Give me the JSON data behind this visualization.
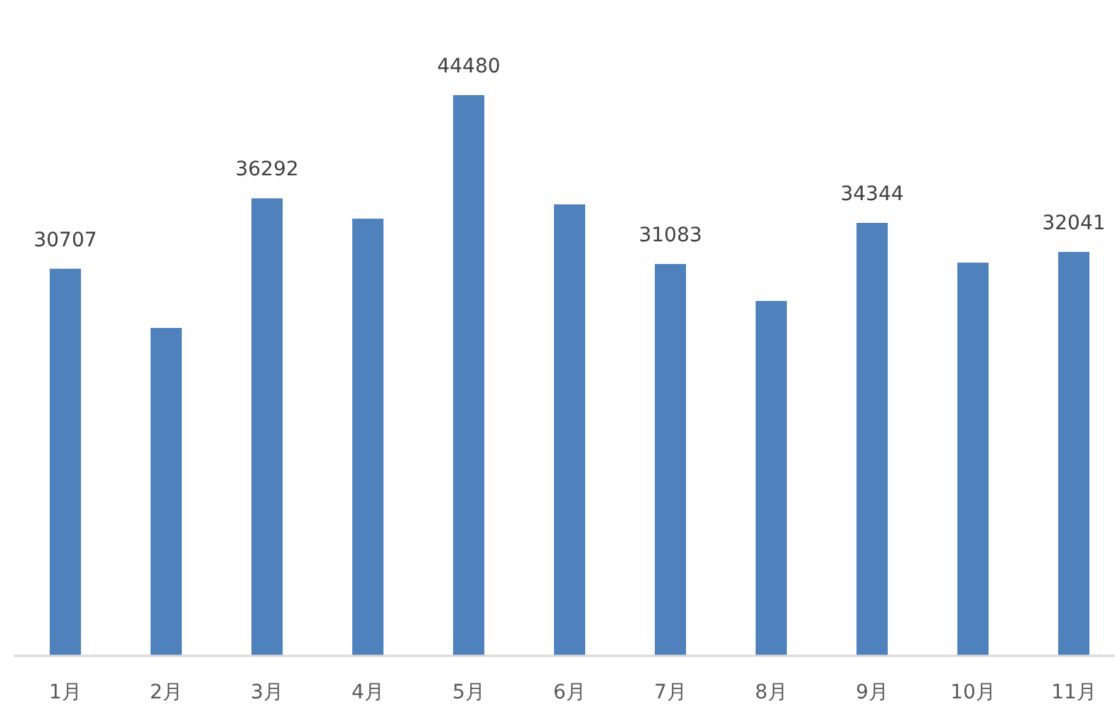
{
  "chart_data": {
    "type": "bar",
    "categories": [
      "1月",
      "2月",
      "3月",
      "4月",
      "5月",
      "6月",
      "7月",
      "8月",
      "9月",
      "10月",
      "11月"
    ],
    "values": [
      30707,
      26010,
      36292,
      34680,
      44480,
      35810,
      31083,
      28150,
      34344,
      31190,
      32041
    ],
    "value_labels": [
      "30707",
      null,
      "36292",
      null,
      "44480",
      null,
      "31083",
      null,
      "34344",
      null,
      "32041"
    ],
    "color": "#4f81bd",
    "tick_labels": "x"
  }
}
